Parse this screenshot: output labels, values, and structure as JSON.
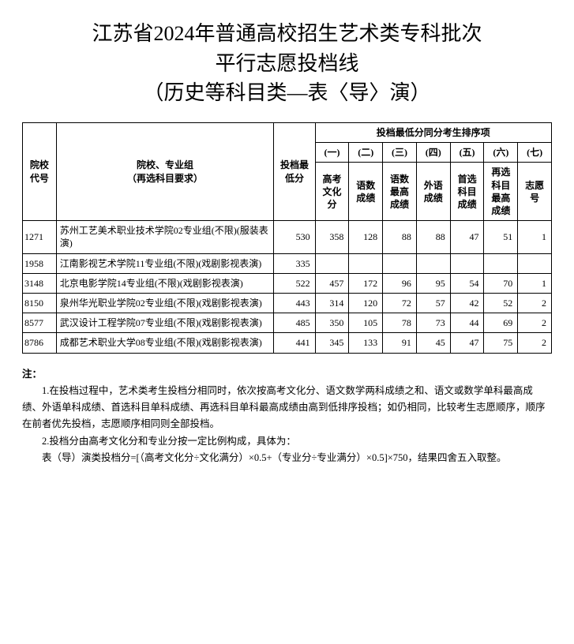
{
  "title_lines": [
    "江苏省2024年普通高校招生艺术类专科批次",
    "平行志愿投档线",
    "（历史等科目类—表〈导〉演）"
  ],
  "header": {
    "col_code": "院校代号",
    "col_name_l1": "院校、专业组",
    "col_name_l2": "（再选科目要求）",
    "col_min": "投档最低分",
    "tiebreak_group": "投档最低分同分考生排序项",
    "sub_nums": [
      "(一)",
      "(二)",
      "(三)",
      "(四)",
      "(五)",
      "(六)",
      "(七)"
    ],
    "sub_labels": [
      "高考文化分",
      "语数成绩",
      "语数最高成绩",
      "外语成绩",
      "首选科目成绩",
      "再选科目最高成绩",
      "志愿号"
    ]
  },
  "rows": [
    {
      "code": "1271",
      "name": "苏州工艺美术职业技术学院02专业组(不限)(服装表演)",
      "min": "530",
      "c1": "358",
      "c2": "128",
      "c3": "88",
      "c4": "88",
      "c5": "47",
      "c6": "51",
      "c7": "1"
    },
    {
      "code": "1958",
      "name": "江南影视艺术学院11专业组(不限)(戏剧影视表演)",
      "min": "335",
      "c1": "",
      "c2": "",
      "c3": "",
      "c4": "",
      "c5": "",
      "c6": "",
      "c7": ""
    },
    {
      "code": "3148",
      "name": "北京电影学院14专业组(不限)(戏剧影视表演)",
      "min": "522",
      "c1": "457",
      "c2": "172",
      "c3": "96",
      "c4": "95",
      "c5": "54",
      "c6": "70",
      "c7": "1"
    },
    {
      "code": "8150",
      "name": "泉州华光职业学院02专业组(不限)(戏剧影视表演)",
      "min": "443",
      "c1": "314",
      "c2": "120",
      "c3": "72",
      "c4": "57",
      "c5": "42",
      "c6": "52",
      "c7": "2"
    },
    {
      "code": "8577",
      "name": "武汉设计工程学院07专业组(不限)(戏剧影视表演)",
      "min": "485",
      "c1": "350",
      "c2": "105",
      "c3": "78",
      "c4": "73",
      "c5": "44",
      "c6": "69",
      "c7": "2"
    },
    {
      "code": "8786",
      "name": "成都艺术职业大学08专业组(不限)(戏剧影视表演)",
      "min": "441",
      "c1": "345",
      "c2": "133",
      "c3": "91",
      "c4": "45",
      "c5": "47",
      "c6": "75",
      "c7": "2"
    }
  ],
  "notes": {
    "lead": "注：",
    "p1": "1.在投档过程中，艺术类考生投档分相同时，依次按高考文化分、语文数学两科成绩之和、语文或数学单科最高成绩、外语单科成绩、首选科目单科成绩、再选科目单科最高成绩由高到低排序投档；如仍相同，比较考生志愿顺序，顺序在前者优先投档，志愿顺序相同则全部投档。",
    "p2": "2.投档分由高考文化分和专业分按一定比例构成，具体为：",
    "p3": "表（导）演类投档分=[（高考文化分÷文化满分）×0.5+（专业分÷专业满分）×0.5]×750，结果四舍五入取整。"
  },
  "style": {
    "title_fontsize": 26,
    "cell_fontsize": 12,
    "notes_fontsize": 12.5,
    "border_color": "#000000",
    "background_color": "#ffffff",
    "text_color": "#000000",
    "font_family": "SimSun"
  }
}
